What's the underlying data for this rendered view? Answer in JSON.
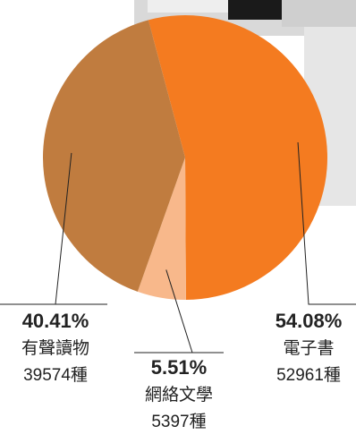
{
  "chart_data": {
    "type": "pie",
    "categories": [
      "電子書",
      "網絡文學",
      "有聲讀物"
    ],
    "values": [
      54.08,
      5.51,
      40.41
    ],
    "value_labels": [
      "54.08%",
      "5.51%",
      "40.41%"
    ],
    "counts": [
      "52961種",
      "5397種",
      "39574種"
    ],
    "colors": [
      "#f47b20",
      "#f8b88b",
      "#c07c3f"
    ]
  }
}
